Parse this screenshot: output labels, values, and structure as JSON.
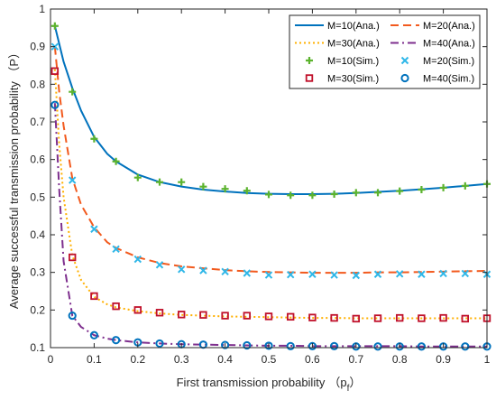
{
  "chart_data": {
    "type": "line",
    "xlabel": "First transmission probability",
    "xlabel_symbol": "p",
    "xlabel_subscript": "f",
    "ylabel": "Average successful transmission probability （P）",
    "xlim": [
      0,
      1
    ],
    "ylim": [
      0.1,
      1
    ],
    "xticks": [
      "0",
      "0.1",
      "0.2",
      "0.3",
      "0.4",
      "0.5",
      "0.6",
      "0.7",
      "0.8",
      "0.9",
      "1"
    ],
    "yticks": [
      "0.1",
      "0.2",
      "0.3",
      "0.4",
      "0.5",
      "0.6",
      "0.7",
      "0.8",
      "0.9",
      "1"
    ],
    "grid": false,
    "legend_position": "top-right",
    "colors": {
      "m10": "#0072BD",
      "m20": "#F25A1E",
      "m30": "#FFB000",
      "m40": "#7E2F8E",
      "m10sim": "#5CB32E",
      "m20sim": "#2FB7E8",
      "m30sim": "#C0102A",
      "m40sim": "#0072BD"
    },
    "series": [
      {
        "name": "M=10(Ana.)",
        "kind": "line",
        "style": "solid",
        "color_key": "m10",
        "x": [
          0.01,
          0.03,
          0.05,
          0.07,
          0.1,
          0.13,
          0.15,
          0.2,
          0.25,
          0.3,
          0.35,
          0.4,
          0.45,
          0.5,
          0.55,
          0.6,
          0.65,
          0.7,
          0.75,
          0.8,
          0.85,
          0.9,
          0.95,
          1.0
        ],
        "y": [
          0.955,
          0.86,
          0.79,
          0.73,
          0.66,
          0.615,
          0.595,
          0.56,
          0.54,
          0.528,
          0.52,
          0.515,
          0.511,
          0.509,
          0.508,
          0.508,
          0.509,
          0.511,
          0.514,
          0.517,
          0.521,
          0.525,
          0.53,
          0.535
        ]
      },
      {
        "name": "M=20(Ana.)",
        "kind": "line",
        "style": "dashed",
        "color_key": "m20",
        "x": [
          0.01,
          0.02,
          0.03,
          0.05,
          0.07,
          0.1,
          0.13,
          0.15,
          0.2,
          0.25,
          0.3,
          0.35,
          0.4,
          0.45,
          0.5,
          0.55,
          0.6,
          0.65,
          0.7,
          0.75,
          0.8,
          0.85,
          0.9,
          0.95,
          1.0
        ],
        "y": [
          0.9,
          0.78,
          0.69,
          0.55,
          0.48,
          0.42,
          0.38,
          0.365,
          0.34,
          0.325,
          0.316,
          0.311,
          0.306,
          0.303,
          0.301,
          0.3,
          0.299,
          0.299,
          0.299,
          0.3,
          0.3,
          0.301,
          0.302,
          0.303,
          0.304
        ]
      },
      {
        "name": "M=30(Ana.)",
        "kind": "line",
        "style": "dotted",
        "color_key": "m30",
        "x": [
          0.01,
          0.02,
          0.03,
          0.05,
          0.07,
          0.1,
          0.13,
          0.15,
          0.2,
          0.25,
          0.3,
          0.35,
          0.4,
          0.45,
          0.5,
          0.55,
          0.6,
          0.65,
          0.7,
          0.75,
          0.8,
          0.85,
          0.9,
          0.95,
          1.0
        ],
        "y": [
          0.84,
          0.64,
          0.5,
          0.345,
          0.28,
          0.235,
          0.215,
          0.207,
          0.197,
          0.191,
          0.187,
          0.185,
          0.183,
          0.182,
          0.181,
          0.18,
          0.179,
          0.179,
          0.178,
          0.178,
          0.178,
          0.178,
          0.178,
          0.178,
          0.178
        ]
      },
      {
        "name": "M=40(Ana.)",
        "kind": "line",
        "style": "dashdot",
        "color_key": "m40",
        "x": [
          0.01,
          0.02,
          0.03,
          0.05,
          0.07,
          0.1,
          0.13,
          0.15,
          0.2,
          0.25,
          0.3,
          0.35,
          0.4,
          0.45,
          0.5,
          0.55,
          0.6,
          0.65,
          0.7,
          0.75,
          0.8,
          0.85,
          0.9,
          0.95,
          1.0
        ],
        "y": [
          0.75,
          0.52,
          0.33,
          0.185,
          0.155,
          0.133,
          0.124,
          0.12,
          0.114,
          0.111,
          0.109,
          0.108,
          0.107,
          0.106,
          0.105,
          0.105,
          0.104,
          0.104,
          0.104,
          0.104,
          0.104,
          0.103,
          0.103,
          0.103,
          0.103
        ]
      },
      {
        "name": "M=10(Sim.)",
        "kind": "marker",
        "marker": "plus",
        "color_key": "m10sim",
        "x": [
          0.01,
          0.05,
          0.1,
          0.15,
          0.2,
          0.25,
          0.3,
          0.35,
          0.4,
          0.45,
          0.5,
          0.55,
          0.6,
          0.65,
          0.7,
          0.75,
          0.8,
          0.85,
          0.9,
          0.95,
          1.0
        ],
        "y": [
          0.955,
          0.78,
          0.655,
          0.595,
          0.552,
          0.54,
          0.54,
          0.528,
          0.522,
          0.517,
          0.507,
          0.505,
          0.505,
          0.508,
          0.512,
          0.512,
          0.516,
          0.52,
          0.525,
          0.53,
          0.535
        ]
      },
      {
        "name": "M=20(Sim.)",
        "kind": "marker",
        "marker": "x",
        "color_key": "m20sim",
        "x": [
          0.01,
          0.05,
          0.1,
          0.15,
          0.2,
          0.25,
          0.3,
          0.35,
          0.4,
          0.45,
          0.5,
          0.55,
          0.6,
          0.65,
          0.7,
          0.75,
          0.8,
          0.85,
          0.9,
          0.95,
          1.0
        ],
        "y": [
          0.9,
          0.545,
          0.415,
          0.362,
          0.335,
          0.32,
          0.308,
          0.305,
          0.302,
          0.298,
          0.293,
          0.294,
          0.295,
          0.293,
          0.292,
          0.295,
          0.296,
          0.295,
          0.297,
          0.297,
          0.295
        ]
      },
      {
        "name": "M=30(Sim.)",
        "kind": "marker",
        "marker": "square",
        "color_key": "m30sim",
        "x": [
          0.01,
          0.05,
          0.1,
          0.15,
          0.2,
          0.25,
          0.3,
          0.35,
          0.4,
          0.45,
          0.5,
          0.55,
          0.6,
          0.65,
          0.7,
          0.75,
          0.8,
          0.85,
          0.9,
          0.95,
          1.0
        ],
        "y": [
          0.835,
          0.34,
          0.237,
          0.21,
          0.2,
          0.193,
          0.188,
          0.187,
          0.185,
          0.185,
          0.183,
          0.182,
          0.18,
          0.179,
          0.177,
          0.178,
          0.179,
          0.178,
          0.179,
          0.177,
          0.178
        ]
      },
      {
        "name": "M=40(Sim.)",
        "kind": "marker",
        "marker": "circle",
        "color_key": "m40sim",
        "x": [
          0.01,
          0.05,
          0.1,
          0.15,
          0.2,
          0.25,
          0.3,
          0.35,
          0.4,
          0.45,
          0.5,
          0.55,
          0.6,
          0.65,
          0.7,
          0.75,
          0.8,
          0.85,
          0.9,
          0.95,
          1.0
        ],
        "y": [
          0.745,
          0.185,
          0.133,
          0.12,
          0.114,
          0.111,
          0.109,
          0.108,
          0.107,
          0.106,
          0.105,
          0.104,
          0.104,
          0.104,
          0.103,
          0.103,
          0.103,
          0.103,
          0.103,
          0.103,
          0.103
        ]
      }
    ]
  }
}
